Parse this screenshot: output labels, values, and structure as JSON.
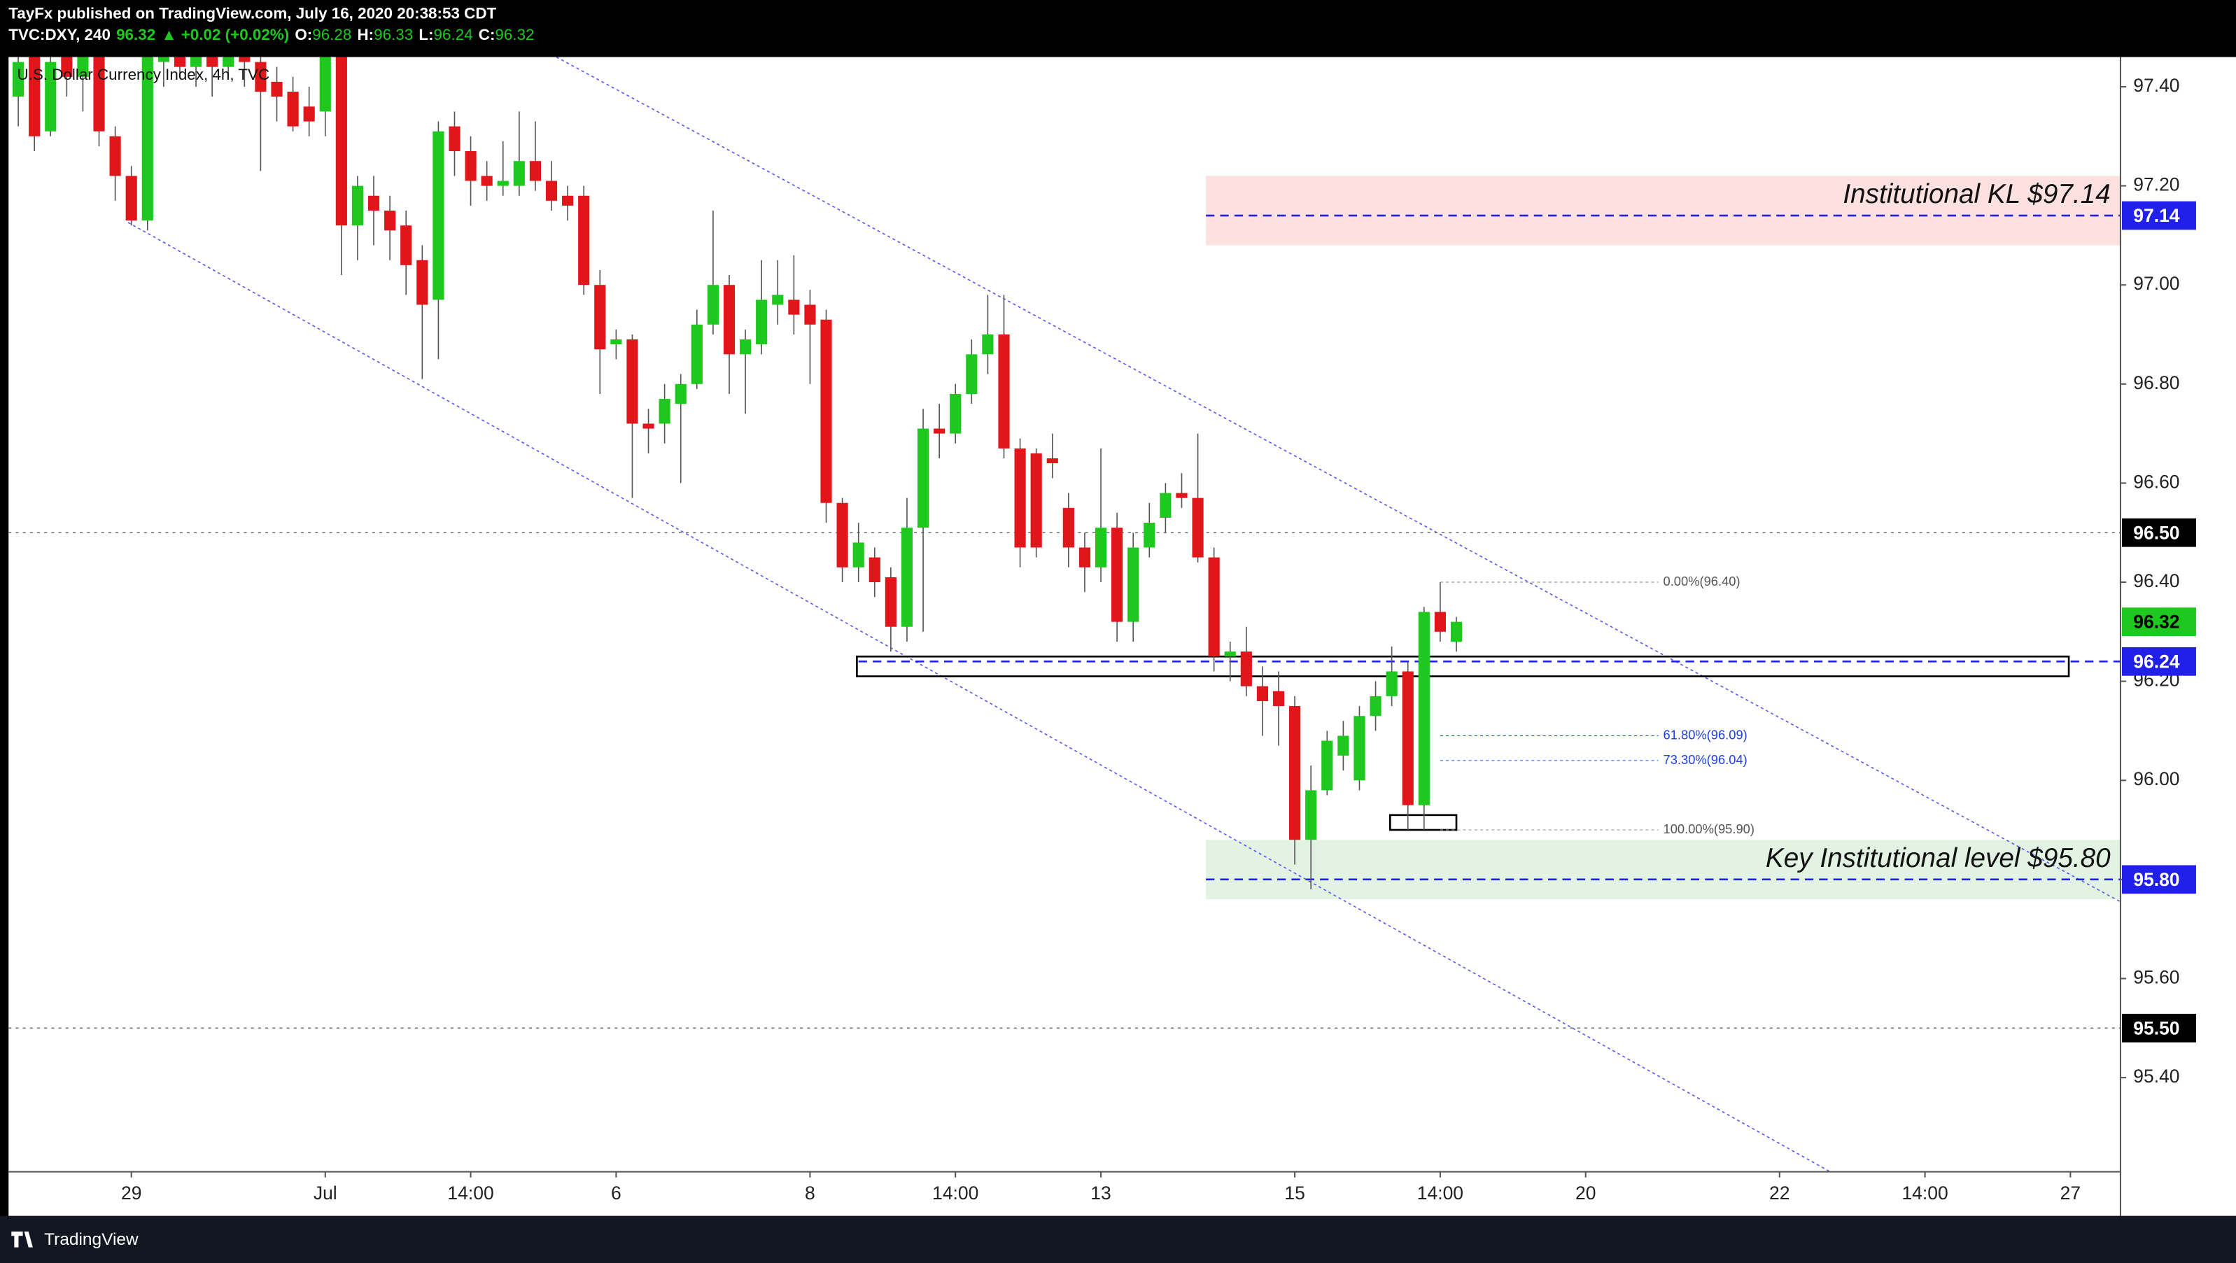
{
  "header": {
    "publisher": "TayFx published on TradingView.com, July 16, 2020 20:38:53 CDT",
    "symbol": "TVC:DXY, 240",
    "last": 96.32,
    "change": "▲ +0.02 (+0.02%)",
    "ohlc": [
      {
        "key": "O:",
        "value": 96.28
      },
      {
        "key": "H:",
        "value": 96.33
      },
      {
        "key": "L:",
        "value": 96.24
      },
      {
        "key": "C:",
        "value": 96.32
      }
    ]
  },
  "chart_data": {
    "type": "candlestick",
    "title": "U.S. Dollar Currency Index, 4h, TVC",
    "up_color": "#1ec81e",
    "down_color": "#e0161b",
    "x": [
      -7,
      -6,
      -5,
      -4,
      -3,
      -2,
      -1,
      0,
      1,
      2,
      3,
      4,
      5,
      6,
      7,
      8,
      9,
      10,
      11,
      12,
      13,
      14,
      15,
      16,
      17,
      18,
      19,
      20,
      21,
      22,
      23,
      24,
      25,
      26,
      27,
      28,
      29,
      30,
      31,
      32,
      33,
      34,
      35,
      36,
      37,
      38,
      39,
      40,
      41,
      42,
      43,
      44,
      45,
      46,
      47,
      48,
      49,
      50,
      51,
      52,
      53,
      54,
      55,
      56,
      57,
      58,
      59,
      60,
      61,
      62,
      63,
      64,
      65,
      66,
      67,
      68,
      69,
      70,
      71,
      72,
      73,
      74,
      75,
      76,
      77,
      78,
      79,
      80,
      81,
      82
    ],
    "open": [
      97.38,
      97.5,
      97.31,
      97.47,
      97.42,
      97.48,
      97.3,
      97.22,
      97.13,
      97.45,
      97.48,
      97.44,
      97.48,
      97.44,
      97.48,
      97.45,
      97.41,
      97.39,
      97.36,
      97.35,
      97.5,
      97.12,
      97.18,
      97.15,
      97.12,
      97.05,
      96.97,
      97.32,
      97.27,
      97.22,
      97.2,
      97.2,
      97.25,
      97.21,
      97.18,
      97.18,
      97.0,
      96.88,
      96.89,
      96.72,
      96.72,
      96.76,
      96.8,
      96.92,
      97.0,
      96.86,
      96.88,
      96.96,
      96.97,
      96.96,
      96.93,
      96.56,
      96.43,
      96.45,
      96.41,
      96.31,
      96.51,
      96.71,
      96.7,
      96.78,
      96.86,
      96.9,
      96.67,
      96.66,
      96.65,
      96.55,
      96.47,
      96.43,
      96.51,
      96.32,
      96.47,
      96.53,
      96.58,
      96.57,
      96.45,
      96.25,
      96.26,
      96.19,
      96.18,
      96.15,
      95.88,
      95.98,
      96.05,
      96.0,
      96.13,
      96.17,
      96.22,
      95.95,
      96.34,
      96.28
    ],
    "high": [
      97.5,
      97.52,
      97.5,
      97.5,
      97.5,
      97.5,
      97.32,
      97.24,
      97.52,
      97.52,
      97.5,
      97.5,
      97.5,
      97.5,
      97.5,
      97.47,
      97.44,
      97.42,
      97.4,
      97.5,
      97.52,
      97.22,
      97.22,
      97.18,
      97.15,
      97.08,
      97.33,
      97.35,
      97.3,
      97.25,
      97.29,
      97.35,
      97.33,
      97.25,
      97.2,
      97.2,
      97.03,
      96.91,
      96.9,
      96.75,
      96.8,
      96.82,
      96.95,
      97.15,
      97.02,
      96.91,
      97.05,
      97.05,
      97.06,
      96.99,
      96.95,
      96.57,
      96.52,
      96.47,
      96.43,
      96.57,
      96.75,
      96.76,
      96.8,
      96.89,
      96.98,
      96.98,
      96.69,
      96.67,
      96.7,
      96.58,
      96.5,
      96.67,
      96.54,
      96.5,
      96.56,
      96.6,
      96.62,
      96.7,
      96.47,
      96.28,
      96.31,
      96.23,
      96.22,
      96.17,
      96.03,
      96.1,
      96.12,
      96.15,
      96.2,
      96.27,
      96.24,
      96.35,
      96.4,
      96.33
    ],
    "low": [
      97.32,
      97.27,
      97.3,
      97.38,
      97.35,
      97.28,
      97.17,
      97.12,
      97.11,
      97.4,
      97.42,
      97.4,
      97.38,
      97.42,
      97.4,
      97.23,
      97.33,
      97.31,
      97.3,
      97.3,
      97.02,
      97.05,
      97.08,
      97.05,
      96.98,
      96.81,
      96.85,
      97.22,
      97.16,
      97.17,
      97.18,
      97.18,
      97.19,
      97.15,
      97.13,
      96.98,
      96.78,
      96.85,
      96.57,
      96.66,
      96.68,
      96.6,
      96.79,
      96.9,
      96.78,
      96.74,
      96.86,
      96.92,
      96.9,
      96.8,
      96.52,
      96.4,
      96.4,
      96.37,
      96.26,
      96.28,
      96.3,
      96.65,
      96.68,
      96.76,
      96.82,
      96.65,
      96.43,
      96.45,
      96.61,
      96.43,
      96.38,
      96.4,
      96.28,
      96.28,
      96.45,
      96.5,
      96.55,
      96.44,
      96.22,
      96.2,
      96.17,
      96.09,
      96.07,
      95.83,
      95.78,
      95.97,
      96.02,
      95.98,
      96.1,
      96.15,
      95.9,
      95.9,
      96.28,
      96.26
    ],
    "close": [
      97.45,
      97.3,
      97.45,
      97.42,
      97.48,
      97.31,
      97.22,
      97.13,
      97.5,
      97.47,
      97.44,
      97.47,
      97.44,
      97.47,
      97.45,
      97.39,
      97.38,
      97.32,
      97.33,
      97.48,
      97.12,
      97.2,
      97.15,
      97.11,
      97.04,
      96.96,
      97.31,
      97.27,
      97.21,
      97.2,
      97.21,
      97.25,
      97.21,
      97.17,
      97.16,
      97.0,
      96.87,
      96.89,
      96.72,
      96.71,
      96.77,
      96.8,
      96.92,
      97.0,
      96.86,
      96.89,
      96.97,
      96.98,
      96.94,
      96.92,
      96.56,
      96.43,
      96.48,
      96.4,
      96.31,
      96.51,
      96.71,
      96.7,
      96.78,
      96.86,
      96.9,
      96.67,
      96.47,
      96.47,
      96.64,
      96.47,
      96.43,
      96.51,
      96.32,
      96.47,
      96.52,
      96.58,
      96.57,
      96.45,
      96.25,
      96.26,
      96.19,
      96.16,
      96.15,
      95.88,
      95.98,
      96.08,
      96.09,
      96.13,
      96.17,
      96.22,
      95.95,
      96.34,
      96.3,
      96.32
    ],
    "xlim": [
      -7.6,
      123.1
    ],
    "ylim": [
      95.21,
      97.46
    ],
    "xticks": [
      {
        "value": 0,
        "label": "29"
      },
      {
        "value": 12,
        "label": "Jul"
      },
      {
        "value": 21,
        "label": "14:00"
      },
      {
        "value": 30,
        "label": "6"
      },
      {
        "value": 42,
        "label": "8"
      },
      {
        "value": 51,
        "label": "14:00"
      },
      {
        "value": 60,
        "label": "13"
      },
      {
        "value": 72,
        "label": "15"
      },
      {
        "value": 81,
        "label": "14:00"
      },
      {
        "value": 90,
        "label": "20"
      },
      {
        "value": 102,
        "label": "22"
      },
      {
        "value": 111,
        "label": "14:00"
      },
      {
        "value": 120,
        "label": "27"
      }
    ],
    "yticks": [
      {
        "value": 97.4,
        "label": "97.40"
      },
      {
        "value": 97.2,
        "label": "97.20"
      },
      {
        "value": 97,
        "label": "97.00"
      },
      {
        "value": 96.8,
        "label": "96.80"
      },
      {
        "value": 96.6,
        "label": "96.60"
      },
      {
        "value": 96.4,
        "label": "96.40"
      },
      {
        "value": 96.2,
        "label": "96.20"
      },
      {
        "value": 96,
        "label": "96.00"
      },
      {
        "value": 95.8,
        "label": "95.80"
      },
      {
        "value": 95.6,
        "label": "95.60"
      },
      {
        "value": 95.4,
        "label": "95.40"
      }
    ],
    "zones": [
      {
        "text": "Institutional KL $97.14",
        "from": 97.08,
        "to": 97.22,
        "start": 66.5,
        "color": "#fde0e0"
      },
      {
        "text": "Key Institutional level $95.80",
        "from": 95.76,
        "to": 95.88,
        "start": 66.5,
        "color": "#e3f3e3"
      }
    ],
    "levels": [
      {
        "price": 97.14,
        "color": "#2020e8",
        "line": "dashed",
        "start": 66.5
      },
      {
        "price": {
          "value": 96.5,
          "label": "96.50"
        },
        "color": "#000000",
        "line": "dotted"
      },
      {
        "price": 96.32,
        "color": "#1ec81e"
      },
      {
        "price": 96.24,
        "color": "#2020e8",
        "line": "dashed",
        "start": 45
      },
      {
        "price": {
          "value": 95.8,
          "label": "95.80"
        },
        "color": "#2020e8",
        "line": "dashed",
        "start": 66.5
      },
      {
        "price": {
          "value": 95.5,
          "label": "95.50"
        },
        "color": "#000000",
        "line": "dotted"
      }
    ],
    "fib": [
      {
        "label": "0.00%(96.40)",
        "price": 96.4,
        "color": "#999999"
      },
      {
        "label": "61.80%(96.09)",
        "price": 96.09,
        "color": "#2962ff"
      },
      {
        "label": "73.30%(96.04)",
        "price": 96.04,
        "color": "#2962ff"
      },
      {
        "label": "100.00%(95.90)",
        "price": 95.9,
        "color": "#999999"
      }
    ],
    "boxes": [
      {
        "x0": 44.9,
        "x1": 119.9,
        "from": 96.21,
        "to": 96.25
      },
      {
        "x0": 77.9,
        "x1": 82.0,
        "from": 95.9,
        "to": 95.93
      }
    ],
    "trendlines": [
      {
        "x0": 26.3,
        "y0": 97.46,
        "x1": 123.1,
        "y1": 95.755
      },
      {
        "x0": -0.2,
        "y0": 97.126,
        "x1": 105.3,
        "y1": 95.207
      }
    ]
  },
  "footer": {
    "brand": "TradingView"
  }
}
